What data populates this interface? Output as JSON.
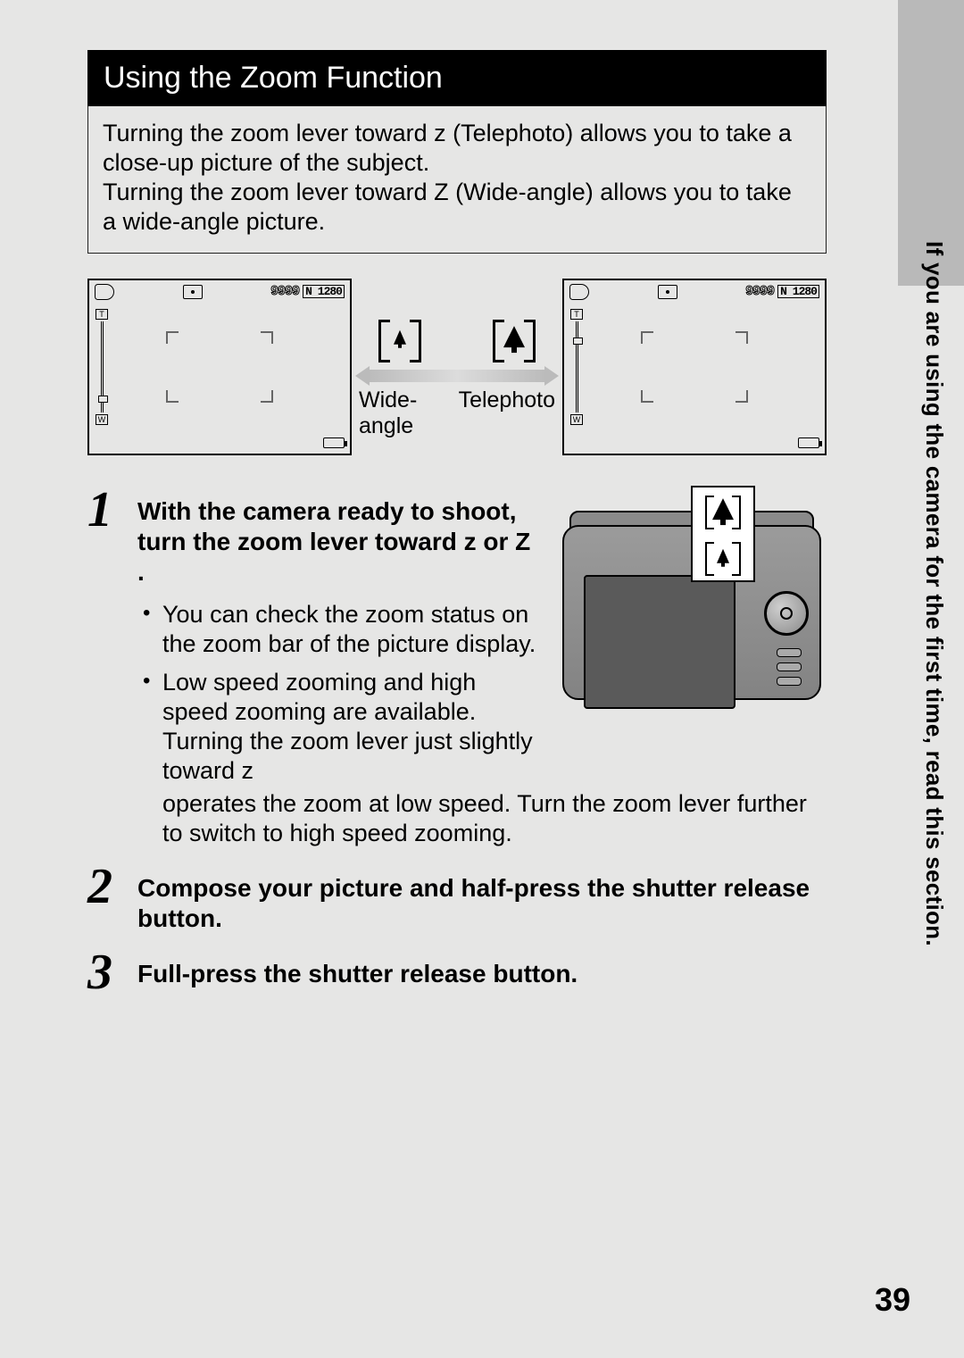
{
  "colors": {
    "page_bg": "#e6e6e5",
    "title_bg": "#000000",
    "title_fg": "#ffffff",
    "sidebar_bg": "#b9b9b9",
    "text": "#000000",
    "focus_corner": "#666666",
    "camera_body": "#8a8a8a",
    "camera_screen": "#5a5a5a"
  },
  "typography": {
    "base_font": "Arial, Helvetica, sans-serif",
    "step_number_font": "Georgia, serif (italic)",
    "title_fontsize_pt": 25,
    "body_fontsize_pt": 20,
    "step_number_fontsize_pt": 42,
    "page_number_fontsize_pt": 27,
    "sidebar_fontsize_pt": 19
  },
  "title": "Using the Zoom Function",
  "intro": {
    "line1": "Turning the zoom lever toward z    (Telephoto) allows you to take a close-up picture of the subject.",
    "line2": "Turning the zoom lever toward Z    (Wide-angle) allows you to take a wide-angle picture."
  },
  "lcd": {
    "counter": "9999",
    "mode_label": "N 1280",
    "zoom_marker_pos_wide_pct": 82,
    "zoom_marker_pos_tele_pct": 18
  },
  "middle": {
    "left_label": "Wide-angle",
    "right_label": "Telephoto"
  },
  "steps": {
    "s1": {
      "num": "1",
      "heading": "With the camera ready to shoot, turn the zoom lever toward z   or Z  .",
      "bullet1": "You can check the zoom status on the zoom bar of the picture display.",
      "bullet2": "Low speed zooming and high speed zooming are available. Turning the zoom lever just slightly toward z   operates the zoom at low speed. Turn the zoom lever further to switch to high speed zooming."
    },
    "s2": {
      "num": "2",
      "heading": "Compose your picture and half-press the shutter release button."
    },
    "s3": {
      "num": "3",
      "heading": "Full-press the shutter release button."
    }
  },
  "sidebar_text": "If you are using the camera for the first time, read this section.",
  "page_number": "39"
}
